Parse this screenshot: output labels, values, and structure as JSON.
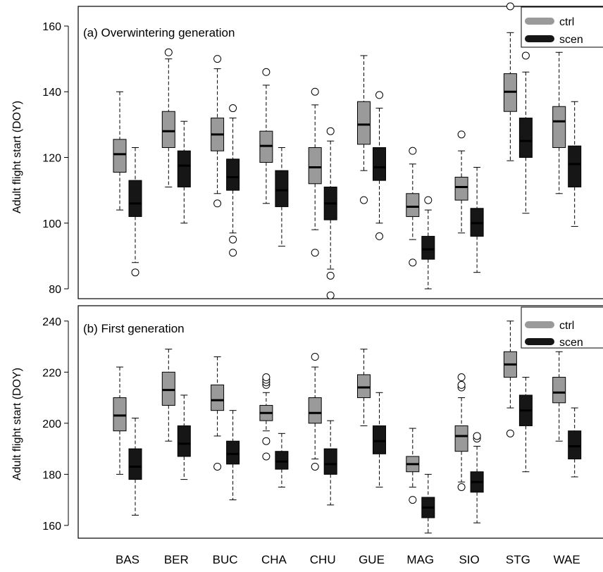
{
  "chart_data": {
    "type": "boxplot",
    "categories": [
      "BAS",
      "BER",
      "BUC",
      "CHA",
      "CHU",
      "GUE",
      "MAG",
      "SIO",
      "STG",
      "WAE"
    ],
    "series_colors": {
      "ctrl": "#9a9a9a",
      "scen": "#161616"
    },
    "legend_position": "top-right",
    "grid": false,
    "panels": [
      {
        "title": "(a) Overwintering generation",
        "ylabel": "Adult flight start (DOY)",
        "ylim": [
          77,
          166
        ],
        "yticks": [
          80,
          100,
          120,
          140,
          160
        ],
        "legend": [
          "ctrl",
          "scen"
        ],
        "series": [
          {
            "name": "ctrl",
            "boxes": [
              {
                "category": "BAS",
                "whislo": 104,
                "q1": 115.5,
                "med": 121,
                "q3": 125.5,
                "whishi": 140,
                "fliers": []
              },
              {
                "category": "BER",
                "whislo": 111,
                "q1": 123,
                "med": 128,
                "q3": 134,
                "whishi": 150,
                "fliers": [
                  152
                ]
              },
              {
                "category": "BUC",
                "whislo": 109,
                "q1": 122,
                "med": 127,
                "q3": 132,
                "whishi": 147,
                "fliers": [
                  106,
                  150
                ]
              },
              {
                "category": "CHA",
                "whislo": 106,
                "q1": 118.5,
                "med": 123.5,
                "q3": 128,
                "whishi": 142,
                "fliers": [
                  146
                ]
              },
              {
                "category": "CHU",
                "whislo": 98,
                "q1": 112,
                "med": 117,
                "q3": 123,
                "whishi": 136,
                "fliers": [
                  91,
                  140
                ]
              },
              {
                "category": "GUE",
                "whislo": 116,
                "q1": 124,
                "med": 130,
                "q3": 137,
                "whishi": 151,
                "fliers": [
                  107
                ]
              },
              {
                "category": "MAG",
                "whislo": 95,
                "q1": 102,
                "med": 105,
                "q3": 109,
                "whishi": 118,
                "fliers": [
                  88,
                  122
                ]
              },
              {
                "category": "SIO",
                "whislo": 97,
                "q1": 107,
                "med": 111,
                "q3": 114,
                "whishi": 122,
                "fliers": [
                  127
                ]
              },
              {
                "category": "STG",
                "whislo": 119,
                "q1": 134,
                "med": 140,
                "q3": 145.5,
                "whishi": 158,
                "fliers": [
                  166
                ]
              },
              {
                "category": "WAE",
                "whislo": 109,
                "q1": 123,
                "med": 131,
                "q3": 135.5,
                "whishi": 152,
                "fliers": []
              }
            ]
          },
          {
            "name": "scen",
            "boxes": [
              {
                "category": "BAS",
                "whislo": 88,
                "q1": 102,
                "med": 106,
                "q3": 113,
                "whishi": 123,
                "fliers": [
                  85
                ]
              },
              {
                "category": "BER",
                "whislo": 100,
                "q1": 111,
                "med": 117.5,
                "q3": 122,
                "whishi": 131,
                "fliers": []
              },
              {
                "category": "BUC",
                "whislo": 97,
                "q1": 110,
                "med": 114,
                "q3": 119.5,
                "whishi": 132,
                "fliers": [
                  91,
                  95,
                  135
                ]
              },
              {
                "category": "CHA",
                "whislo": 93,
                "q1": 105,
                "med": 110,
                "q3": 116,
                "whishi": 123,
                "fliers": []
              },
              {
                "category": "CHU",
                "whislo": 86,
                "q1": 101,
                "med": 106,
                "q3": 111,
                "whishi": 125,
                "fliers": [
                  78,
                  84,
                  128
                ]
              },
              {
                "category": "GUE",
                "whislo": 100,
                "q1": 113,
                "med": 117,
                "q3": 123,
                "whishi": 135,
                "fliers": [
                  96,
                  139
                ]
              },
              {
                "category": "MAG",
                "whislo": 80,
                "q1": 89,
                "med": 92,
                "q3": 96,
                "whishi": 104,
                "fliers": [
                  107
                ]
              },
              {
                "category": "SIO",
                "whislo": 85,
                "q1": 96,
                "med": 100,
                "q3": 104.5,
                "whishi": 117,
                "fliers": []
              },
              {
                "category": "STG",
                "whislo": 103,
                "q1": 120,
                "med": 125,
                "q3": 132,
                "whishi": 146,
                "fliers": [
                  151
                ]
              },
              {
                "category": "WAE",
                "whislo": 99,
                "q1": 111,
                "med": 118,
                "q3": 123.5,
                "whishi": 137,
                "fliers": []
              }
            ]
          }
        ]
      },
      {
        "title": "(b) First generation",
        "ylabel": "Adult flight start (DOY)",
        "ylim": [
          155,
          246
        ],
        "yticks": [
          160,
          180,
          200,
          220,
          240
        ],
        "legend": [
          "ctrl",
          "scen"
        ],
        "series": [
          {
            "name": "ctrl",
            "boxes": [
              {
                "category": "BAS",
                "whislo": 180,
                "q1": 197,
                "med": 203,
                "q3": 210,
                "whishi": 222,
                "fliers": []
              },
              {
                "category": "BER",
                "whislo": 193,
                "q1": 207,
                "med": 213,
                "q3": 220,
                "whishi": 229,
                "fliers": []
              },
              {
                "category": "BUC",
                "whislo": 195,
                "q1": 205,
                "med": 209,
                "q3": 215,
                "whishi": 226,
                "fliers": [
                  183
                ]
              },
              {
                "category": "CHA",
                "whislo": 197,
                "q1": 201,
                "med": 204,
                "q3": 207,
                "whishi": 212,
                "fliers": [
                  187,
                  193,
                  215,
                  216,
                  217,
                  218
                ]
              },
              {
                "category": "CHU",
                "whislo": 186,
                "q1": 200,
                "med": 204,
                "q3": 210,
                "whishi": 222,
                "fliers": [
                  183,
                  226
                ]
              },
              {
                "category": "GUE",
                "whislo": 199,
                "q1": 210,
                "med": 214,
                "q3": 219,
                "whishi": 229,
                "fliers": []
              },
              {
                "category": "MAG",
                "whislo": 175,
                "q1": 181,
                "med": 184,
                "q3": 187,
                "whishi": 198,
                "fliers": [
                  170
                ]
              },
              {
                "category": "SIO",
                "whislo": 177,
                "q1": 189,
                "med": 195,
                "q3": 199,
                "whishi": 210,
                "fliers": [
                  175,
                  214,
                  215,
                  218
                ]
              },
              {
                "category": "STG",
                "whislo": 206,
                "q1": 218,
                "med": 223,
                "q3": 228,
                "whishi": 240,
                "fliers": [
                  196
                ]
              },
              {
                "category": "WAE",
                "whislo": 193,
                "q1": 208,
                "med": 212,
                "q3": 218,
                "whishi": 228,
                "fliers": []
              }
            ]
          },
          {
            "name": "scen",
            "boxes": [
              {
                "category": "BAS",
                "whislo": 164,
                "q1": 178,
                "med": 183,
                "q3": 190,
                "whishi": 202,
                "fliers": []
              },
              {
                "category": "BER",
                "whislo": 178,
                "q1": 187,
                "med": 192,
                "q3": 199,
                "whishi": 211,
                "fliers": []
              },
              {
                "category": "BUC",
                "whislo": 170,
                "q1": 184,
                "med": 188,
                "q3": 193,
                "whishi": 205,
                "fliers": []
              },
              {
                "category": "CHA",
                "whislo": 175,
                "q1": 182,
                "med": 185,
                "q3": 189,
                "whishi": 196,
                "fliers": []
              },
              {
                "category": "CHU",
                "whislo": 168,
                "q1": 180,
                "med": 184,
                "q3": 190,
                "whishi": 201,
                "fliers": []
              },
              {
                "category": "GUE",
                "whislo": 175,
                "q1": 188,
                "med": 193,
                "q3": 199,
                "whishi": 212,
                "fliers": []
              },
              {
                "category": "MAG",
                "whislo": 157,
                "q1": 163,
                "med": 167,
                "q3": 171,
                "whishi": 180,
                "fliers": []
              },
              {
                "category": "SIO",
                "whislo": 161,
                "q1": 173,
                "med": 177,
                "q3": 181,
                "whishi": 191,
                "fliers": [
                  194,
                  195
                ]
              },
              {
                "category": "STG",
                "whislo": 181,
                "q1": 199,
                "med": 205,
                "q3": 211,
                "whishi": 218,
                "fliers": []
              },
              {
                "category": "WAE",
                "whislo": 179,
                "q1": 186,
                "med": 191,
                "q3": 197,
                "whishi": 206,
                "fliers": []
              }
            ]
          }
        ]
      }
    ]
  }
}
